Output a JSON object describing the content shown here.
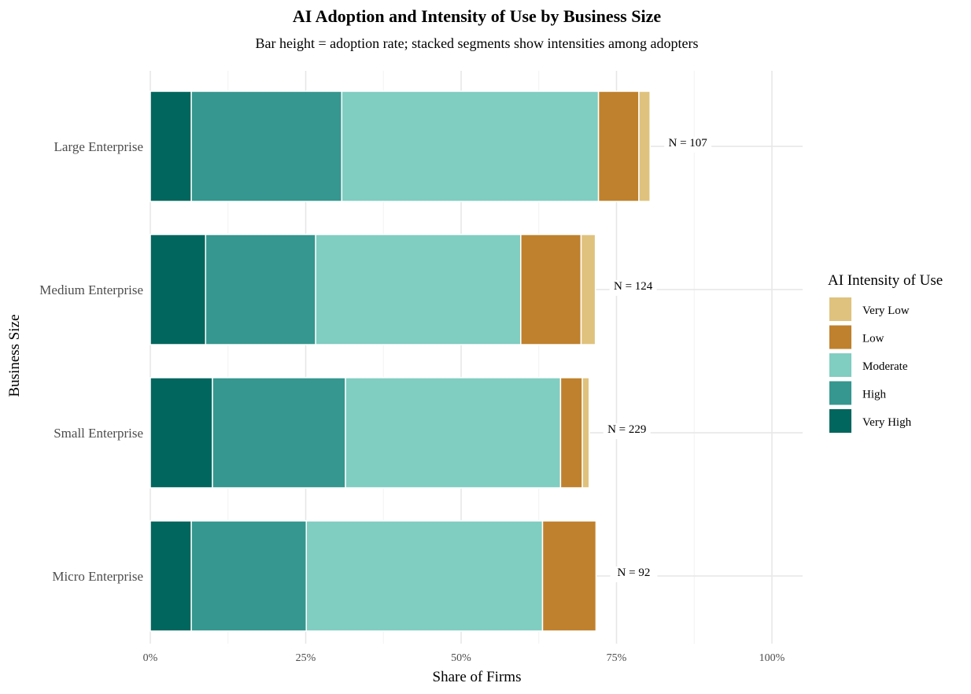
{
  "chart_data": {
    "type": "bar",
    "orientation": "horizontal",
    "stacked": true,
    "title": "AI Adoption and Intensity of Use by Business Size",
    "subtitle": "Bar height = adoption rate; stacked segments show intensities among adopters",
    "xlabel": "Share of Firms",
    "ylabel": "Business Size",
    "xlim": [
      0,
      100
    ],
    "xticks": [
      "0%",
      "25%",
      "50%",
      "75%",
      "100%"
    ],
    "grid": true,
    "categories": [
      "Large Enterprise",
      "Medium Enterprise",
      "Small Enterprise",
      "Micro Enterprise"
    ],
    "annotations": [
      "N = 107",
      "N = 124",
      "N = 229",
      "N = 92"
    ],
    "legend": {
      "title": "AI Intensity of Use",
      "placement": "right",
      "entries": [
        "Very Low",
        "Low",
        "Moderate",
        "High",
        "Very High"
      ]
    },
    "series": [
      {
        "name": "Very High",
        "color": "#01665e",
        "values": [
          6.6,
          8.9,
          10.0,
          6.6
        ]
      },
      {
        "name": "High",
        "color": "#35978f",
        "values": [
          24.2,
          17.7,
          21.4,
          18.5
        ]
      },
      {
        "name": "Moderate",
        "color": "#80cdc1",
        "values": [
          41.3,
          33.0,
          34.6,
          38.0
        ]
      },
      {
        "name": "Low",
        "color": "#bf812d",
        "values": [
          6.5,
          9.7,
          3.5,
          8.6
        ]
      },
      {
        "name": "Very Low",
        "color": "#dfc27d",
        "values": [
          1.8,
          2.3,
          1.1,
          0
        ]
      }
    ]
  }
}
